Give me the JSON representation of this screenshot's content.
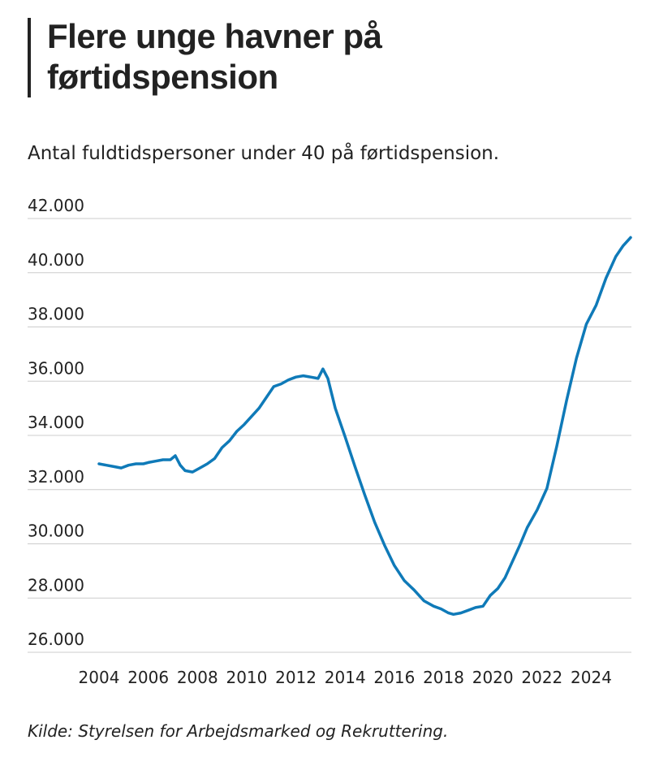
{
  "header": {
    "title": "Flere unge havner på førtidspension",
    "subtitle": "Antal fuldtidspersoner under 40 på førtidspension."
  },
  "footer": {
    "source": "Kilde: Styrelsen for Arbejdsmarked og Rekruttering."
  },
  "colors": {
    "line": "#0f7ab8",
    "grid": "#cccccc",
    "text": "#222222"
  },
  "chart_data": {
    "type": "line",
    "title": "Flere unge havner på førtidspension",
    "subtitle": "Antal fuldtidspersoner under 40 på førtidspension.",
    "xlabel": "",
    "ylabel": "",
    "xlim": [
      2004,
      2025.6
    ],
    "ylim": [
      26000,
      42000
    ],
    "grid": true,
    "y_ticks": [
      {
        "value": 26000,
        "label": "26.000"
      },
      {
        "value": 28000,
        "label": "28.000"
      },
      {
        "value": 30000,
        "label": "30.000"
      },
      {
        "value": 32000,
        "label": "32.000"
      },
      {
        "value": 34000,
        "label": "34.000"
      },
      {
        "value": 36000,
        "label": "36.000"
      },
      {
        "value": 38000,
        "label": "38.000"
      },
      {
        "value": 40000,
        "label": "40.000"
      },
      {
        "value": 42000,
        "label": "42.000"
      }
    ],
    "x_ticks": [
      {
        "value": 2004,
        "label": "2004"
      },
      {
        "value": 2006,
        "label": "2006"
      },
      {
        "value": 2008,
        "label": "2008"
      },
      {
        "value": 2010,
        "label": "2010"
      },
      {
        "value": 2012,
        "label": "2012"
      },
      {
        "value": 2014,
        "label": "2014"
      },
      {
        "value": 2016,
        "label": "2016"
      },
      {
        "value": 2018,
        "label": "2018"
      },
      {
        "value": 2020,
        "label": "2020"
      },
      {
        "value": 2022,
        "label": "2022"
      },
      {
        "value": 2024,
        "label": "2024"
      }
    ],
    "series": [
      {
        "x": [
          2004.0,
          2004.3,
          2004.6,
          2004.9,
          2005.2,
          2005.5,
          2005.8,
          2006.0,
          2006.3,
          2006.6,
          2006.9,
          2007.1,
          2007.3,
          2007.5,
          2007.8,
          2008.1,
          2008.4,
          2008.7,
          2009.0,
          2009.3,
          2009.6,
          2009.9,
          2010.2,
          2010.5,
          2010.8,
          2011.1,
          2011.4,
          2011.7,
          2012.0,
          2012.3,
          2012.6,
          2012.9,
          2013.1,
          2013.3,
          2013.6,
          2014.0,
          2014.4,
          2014.8,
          2015.2,
          2015.6,
          2016.0,
          2016.4,
          2016.8,
          2017.2,
          2017.6,
          2017.9,
          2018.2,
          2018.4,
          2018.7,
          2019.0,
          2019.3,
          2019.6,
          2019.9,
          2020.2,
          2020.5,
          2020.8,
          2021.1,
          2021.4,
          2021.8,
          2022.2,
          2022.6,
          2023.0,
          2023.4,
          2023.8,
          2024.2,
          2024.6,
          2025.0,
          2025.3,
          2025.6
        ],
        "y": [
          32950,
          32900,
          32850,
          32800,
          32900,
          32950,
          32950,
          33000,
          33050,
          33100,
          33100,
          33250,
          32900,
          32700,
          32650,
          32800,
          32950,
          33150,
          33550,
          33800,
          34150,
          34400,
          34700,
          35000,
          35400,
          35800,
          35900,
          36050,
          36150,
          36200,
          36150,
          36100,
          36450,
          36100,
          35000,
          33950,
          32850,
          31800,
          30800,
          29950,
          29200,
          28650,
          28300,
          27900,
          27700,
          27600,
          27450,
          27400,
          27450,
          27550,
          27650,
          27700,
          28100,
          28350,
          28750,
          29350,
          29950,
          30600,
          31250,
          32050,
          33600,
          35300,
          36850,
          38100,
          38800,
          39800,
          40600,
          41000,
          41300
        ]
      }
    ]
  }
}
